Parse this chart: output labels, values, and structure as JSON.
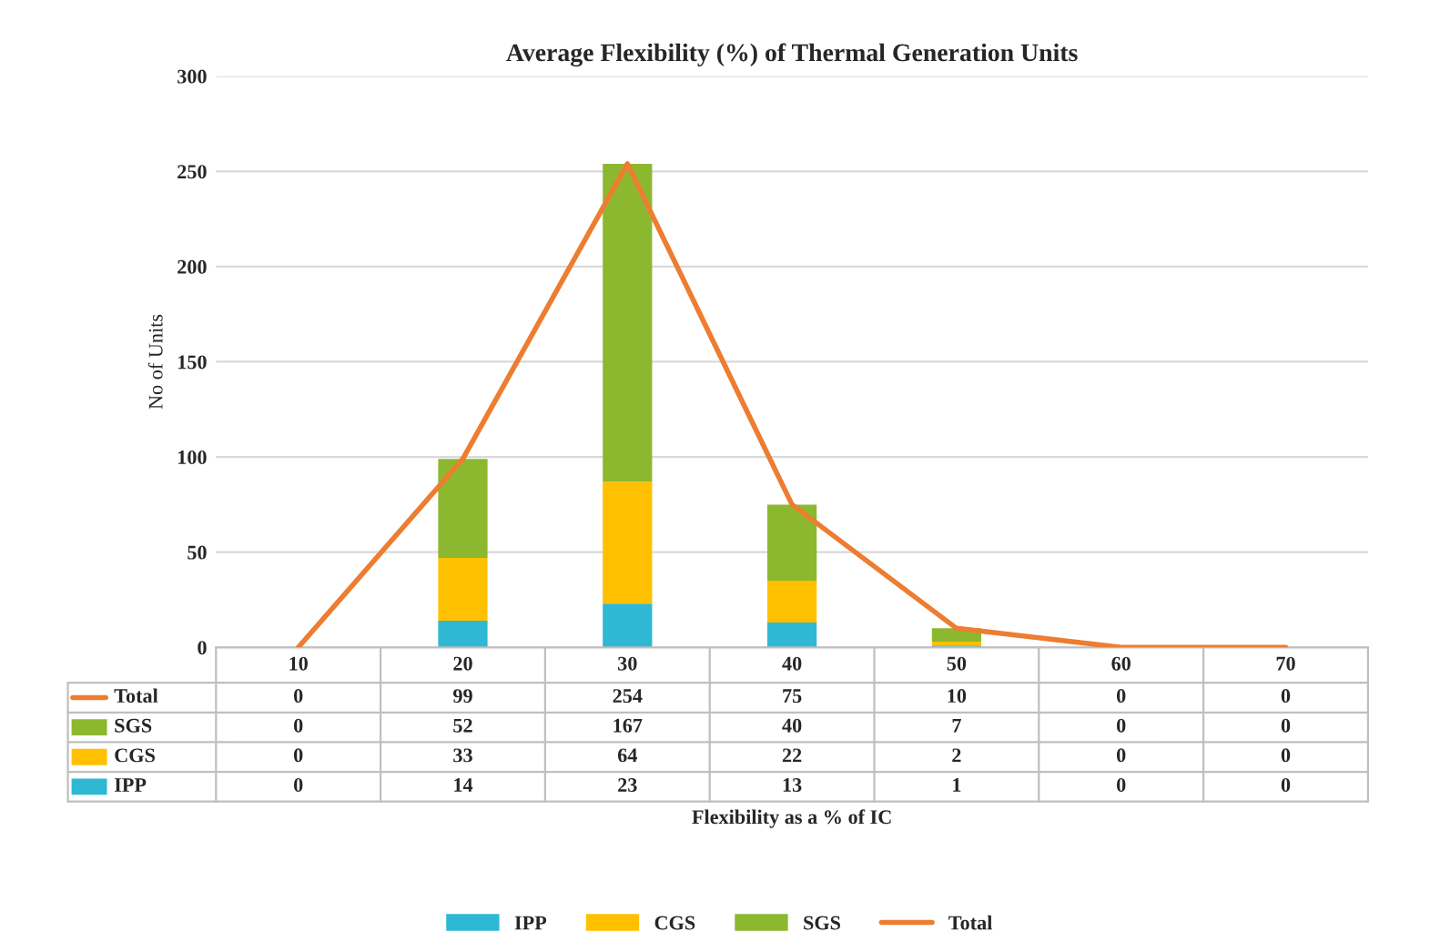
{
  "chart_data": {
    "type": "bar",
    "title": "Average Flexibility (%) of Thermal Generation Units",
    "annotations": [
      "Flexibility as a % of IC"
    ],
    "ylabel": "No of Units",
    "categories": [
      "10",
      "20",
      "30",
      "40",
      "50",
      "60",
      "70"
    ],
    "stacked": true,
    "series": [
      {
        "name": "IPP",
        "color": "#2fb8d3",
        "values": [
          0,
          14,
          23,
          13,
          1,
          0,
          0
        ]
      },
      {
        "name": "CGS",
        "color": "#ffc000",
        "values": [
          0,
          33,
          64,
          22,
          2,
          0,
          0
        ]
      },
      {
        "name": "SGS",
        "color": "#8cb82f",
        "values": [
          0,
          52,
          167,
          40,
          7,
          0,
          0
        ]
      },
      {
        "name": "Total",
        "type": "line",
        "color": "#ed7d31",
        "values": [
          0,
          99,
          254,
          75,
          10,
          0,
          0
        ]
      }
    ],
    "ylim": [
      0,
      300
    ],
    "yticks": [
      0,
      50,
      100,
      150,
      200,
      250,
      300
    ],
    "grid": "y",
    "legend": "bottom",
    "data_labels": true
  }
}
